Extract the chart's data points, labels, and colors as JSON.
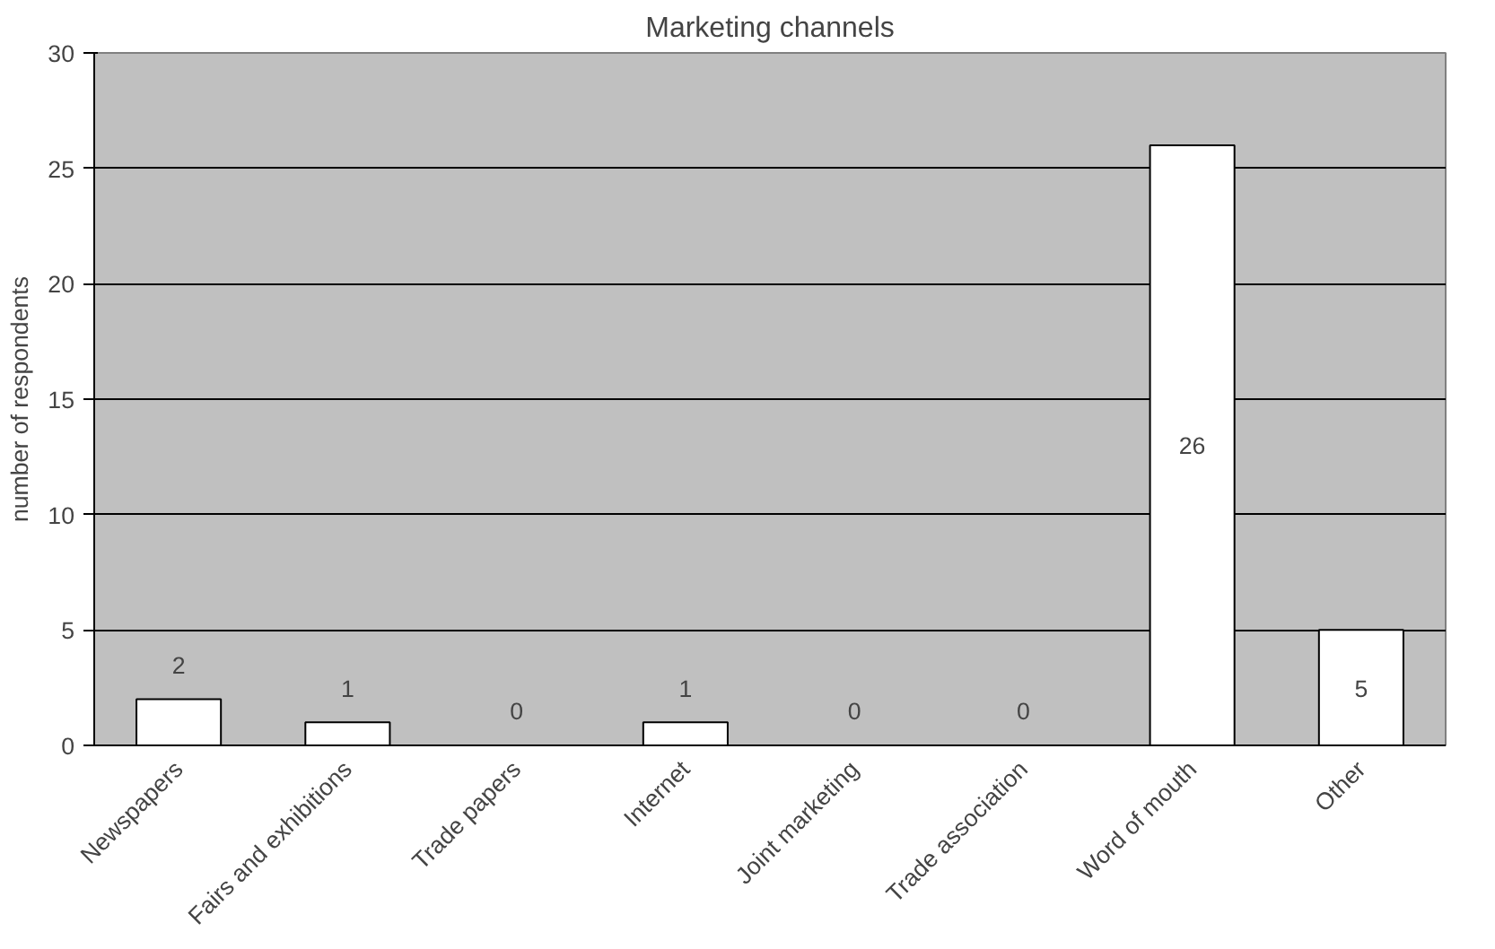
{
  "chart_data": {
    "type": "bar",
    "title": "Marketing channels",
    "ylabel": "number of respondents",
    "categories": [
      "Newspapers",
      "Fairs and exhibitions",
      "Trade papers",
      "Internet",
      "Joint marketing",
      "Trade association",
      "Word of mouth",
      "Other"
    ],
    "values": [
      2,
      1,
      0,
      1,
      0,
      0,
      26,
      5
    ],
    "color": "#ffffff",
    "ylim": [
      0,
      30
    ],
    "yticks": [
      0,
      5,
      10,
      15,
      20,
      25,
      30
    ],
    "grid": "y",
    "data_labels": true
  }
}
